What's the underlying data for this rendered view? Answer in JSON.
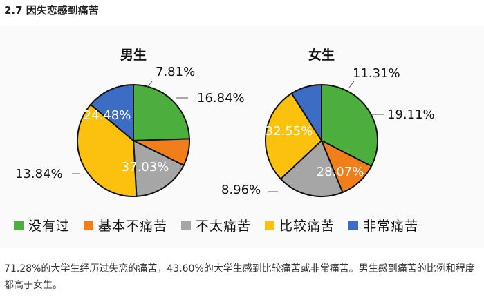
{
  "section": {
    "title": "2.7 因失恋感到痛苦"
  },
  "colors": {
    "没有过": "#4cae3c",
    "基本不痛苦": "#f07e1a",
    "不太痛苦": "#a6a6a6",
    "比较痛苦": "#fcc10e",
    "非常痛苦": "#3d6cc4"
  },
  "legend": [
    {
      "label": "没有过",
      "color": "#4cae3c"
    },
    {
      "label": "基本不痛苦",
      "color": "#f07e1a"
    },
    {
      "label": "不太痛苦",
      "color": "#a6a6a6"
    },
    {
      "label": "比较痛苦",
      "color": "#fcc10e"
    },
    {
      "label": "非常痛苦",
      "color": "#3d6cc4"
    }
  ],
  "chart_data": [
    {
      "type": "pie",
      "title": "男生",
      "categories": [
        "没有过",
        "基本不痛苦",
        "不太痛苦",
        "比较痛苦",
        "非常痛苦"
      ],
      "values": [
        24.48,
        7.81,
        16.84,
        37.03,
        13.84
      ],
      "labels": [
        "24.48%",
        "7.81%",
        "16.84%",
        "37.03%",
        "13.84%"
      ]
    },
    {
      "type": "pie",
      "title": "女生",
      "categories": [
        "没有过",
        "基本不痛苦",
        "不太痛苦",
        "比较痛苦",
        "非常痛苦"
      ],
      "values": [
        32.55,
        11.31,
        19.11,
        28.07,
        8.96
      ],
      "labels": [
        "32.55%",
        "11.31%",
        "19.11%",
        "28.07%",
        "8.96%"
      ]
    }
  ],
  "caption": "71.28%的大学生经历过失恋的痛苦，43.60%的大学生感到比较痛苦或非常痛苦。男生感到痛苦的比例和程度都高于女生。"
}
